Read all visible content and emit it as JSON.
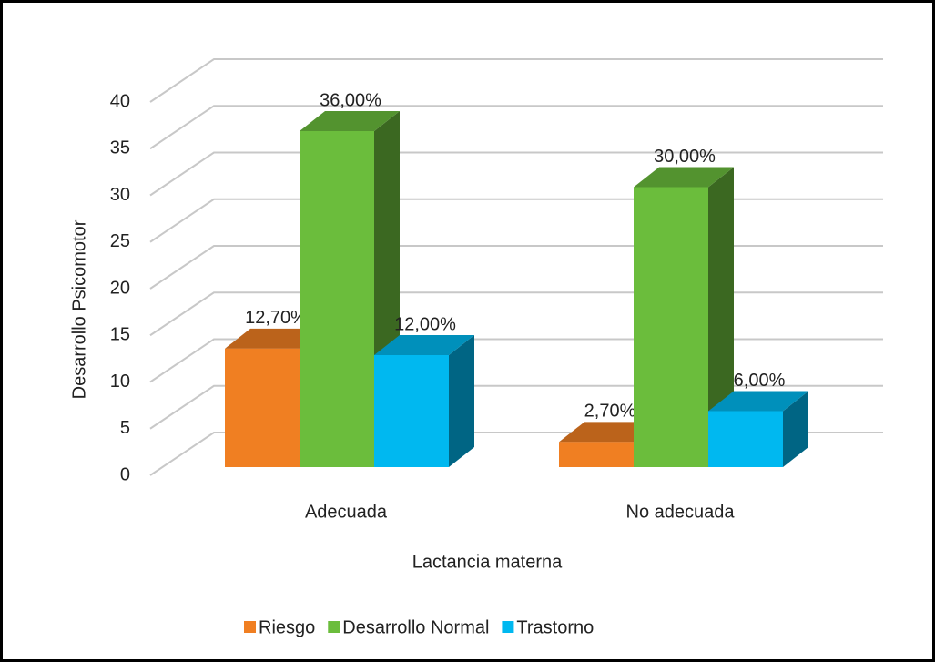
{
  "chart_data": {
    "type": "bar3d",
    "categories": [
      "Adecuada",
      "No adecuada"
    ],
    "series": [
      {
        "name": "Riesgo",
        "color": "#f07f22",
        "values": [
          12.7,
          2.7
        ],
        "value_labels": [
          "12,70%",
          "2,70%"
        ]
      },
      {
        "name": "Desarrollo Normal",
        "color": "#6bbd3c",
        "values": [
          36,
          30
        ],
        "value_labels": [
          "36,00%",
          "30,00%"
        ]
      },
      {
        "name": "Trastorno",
        "color": "#00b8f0",
        "values": [
          12,
          6
        ],
        "value_labels": [
          "12,00%",
          "6,00%"
        ]
      }
    ],
    "ylabel": "Desarrollo  Psicomotor",
    "xlabel": "Lactancia materna",
    "ylim": [
      0,
      40
    ],
    "yticks": [
      0,
      5,
      10,
      15,
      20,
      25,
      30,
      35,
      40
    ],
    "grid": true,
    "legend": "bottom"
  }
}
